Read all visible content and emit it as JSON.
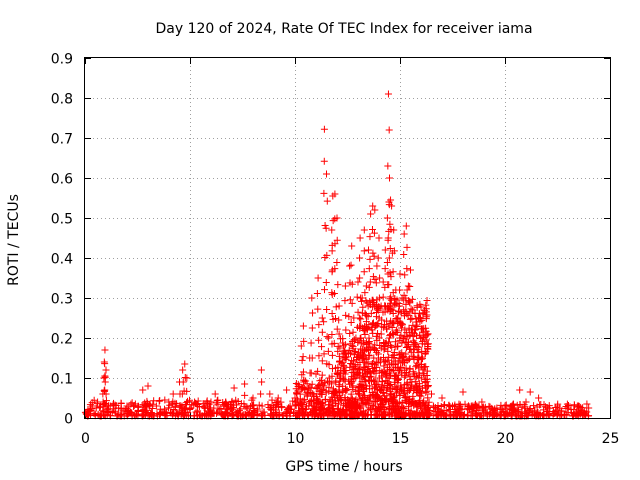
{
  "chart_data": {
    "type": "scatter",
    "title": "Day 120 of 2024, Rate Of TEC Index for receiver iama",
    "xlabel": "GPS time / hours",
    "ylabel": "ROTI / TECUs",
    "xlim": [
      0,
      25
    ],
    "ylim": [
      0,
      0.9
    ],
    "xticks": [
      0,
      5,
      10,
      15,
      20,
      25
    ],
    "xtick_labels": [
      "0",
      "5",
      "10",
      "15",
      "20",
      "25"
    ],
    "yticks": [
      0,
      0.1,
      0.2,
      0.3,
      0.4,
      0.5,
      0.6,
      0.7,
      0.8,
      0.9
    ],
    "ytick_labels": [
      "0",
      "0.1",
      "0.2",
      "0.3",
      "0.4",
      "0.5",
      "0.6",
      "0.7",
      "0.8",
      "0.9"
    ],
    "grid": true,
    "marker": "+",
    "marker_color": "#ff0000",
    "series": [
      {
        "name": "ROTI",
        "points": [
          [
            0.1,
            0.015
          ],
          [
            0.35,
            0.03
          ],
          [
            0.6,
            0.04
          ],
          [
            0.85,
            0.06
          ],
          [
            0.9,
            0.1
          ],
          [
            0.92,
            0.14
          ],
          [
            0.95,
            0.17
          ],
          [
            1.0,
            0.12
          ],
          [
            1.2,
            0.03
          ],
          [
            1.6,
            0.025
          ],
          [
            2.0,
            0.03
          ],
          [
            2.4,
            0.035
          ],
          [
            2.75,
            0.07
          ],
          [
            3.0,
            0.08
          ],
          [
            3.4,
            0.03
          ],
          [
            3.8,
            0.045
          ],
          [
            4.2,
            0.06
          ],
          [
            4.5,
            0.09
          ],
          [
            4.65,
            0.12
          ],
          [
            4.75,
            0.135
          ],
          [
            4.85,
            0.1
          ],
          [
            5.3,
            0.035
          ],
          [
            5.8,
            0.04
          ],
          [
            6.2,
            0.06
          ],
          [
            6.7,
            0.04
          ],
          [
            7.1,
            0.075
          ],
          [
            7.6,
            0.085
          ],
          [
            8.0,
            0.05
          ],
          [
            8.4,
            0.12
          ],
          [
            8.8,
            0.06
          ],
          [
            9.2,
            0.05
          ],
          [
            9.6,
            0.07
          ],
          [
            10.0,
            0.05
          ],
          [
            10.2,
            0.08
          ],
          [
            10.3,
            0.18
          ],
          [
            10.4,
            0.23
          ],
          [
            10.7,
            0.15
          ],
          [
            10.8,
            0.3
          ],
          [
            11.0,
            0.11
          ],
          [
            11.1,
            0.35
          ],
          [
            11.3,
            0.25
          ],
          [
            11.4,
            0.722
          ],
          [
            11.5,
            0.61
          ],
          [
            11.6,
            0.2
          ],
          [
            11.75,
            0.47
          ],
          [
            11.8,
            0.555
          ],
          [
            11.9,
            0.56
          ],
          [
            12.0,
            0.5
          ],
          [
            12.1,
            0.28
          ],
          [
            12.3,
            0.16
          ],
          [
            12.4,
            0.33
          ],
          [
            12.6,
            0.38
          ],
          [
            12.7,
            0.43
          ],
          [
            12.8,
            0.25
          ],
          [
            12.9,
            0.2
          ],
          [
            13.0,
            0.34
          ],
          [
            13.1,
            0.45
          ],
          [
            13.2,
            0.3
          ],
          [
            13.3,
            0.47
          ],
          [
            13.4,
            0.33
          ],
          [
            13.5,
            0.42
          ],
          [
            13.6,
            0.51
          ],
          [
            13.7,
            0.53
          ],
          [
            13.8,
            0.52
          ],
          [
            13.9,
            0.38
          ],
          [
            14.0,
            0.45
          ],
          [
            14.1,
            0.28
          ],
          [
            14.2,
            0.34
          ],
          [
            14.3,
            0.42
          ],
          [
            14.4,
            0.5
          ],
          [
            14.45,
            0.81
          ],
          [
            14.5,
            0.6
          ],
          [
            14.55,
            0.545
          ],
          [
            14.6,
            0.53
          ],
          [
            14.7,
            0.47
          ],
          [
            14.8,
            0.32
          ],
          [
            14.9,
            0.25
          ],
          [
            15.0,
            0.36
          ],
          [
            15.1,
            0.3
          ],
          [
            15.2,
            0.46
          ],
          [
            15.3,
            0.48
          ],
          [
            15.4,
            0.33
          ],
          [
            15.5,
            0.37
          ],
          [
            15.6,
            0.27
          ],
          [
            15.7,
            0.22
          ],
          [
            15.8,
            0.24
          ],
          [
            15.9,
            0.15
          ],
          [
            16.0,
            0.2
          ],
          [
            16.1,
            0.26
          ],
          [
            16.2,
            0.16
          ],
          [
            16.5,
            0.06
          ],
          [
            17.0,
            0.05
          ],
          [
            17.5,
            0.03
          ],
          [
            18.0,
            0.065
          ],
          [
            18.4,
            0.03
          ],
          [
            18.9,
            0.04
          ],
          [
            19.5,
            0.02
          ],
          [
            20.0,
            0.03
          ],
          [
            20.4,
            0.025
          ],
          [
            20.7,
            0.07
          ],
          [
            21.0,
            0.04
          ],
          [
            21.2,
            0.065
          ],
          [
            21.6,
            0.05
          ],
          [
            22.0,
            0.02
          ],
          [
            22.5,
            0.03
          ],
          [
            23.0,
            0.025
          ],
          [
            23.5,
            0.03
          ],
          [
            23.9,
            0.035
          ]
        ],
        "dense_bands": [
          {
            "x_start": 0.0,
            "x_end": 10.0,
            "y_min": 0.005,
            "y_max": 0.045,
            "count": 420
          },
          {
            "x_start": 10.0,
            "x_end": 12.0,
            "y_min": 0.005,
            "y_max": 0.1,
            "count": 200
          },
          {
            "x_start": 12.0,
            "x_end": 13.0,
            "y_min": 0.005,
            "y_max": 0.2,
            "count": 180
          },
          {
            "x_start": 13.0,
            "x_end": 16.4,
            "y_min": 0.005,
            "y_max": 0.3,
            "count": 650
          },
          {
            "x_start": 16.4,
            "x_end": 24.0,
            "y_min": 0.005,
            "y_max": 0.035,
            "count": 320
          }
        ]
      }
    ]
  }
}
